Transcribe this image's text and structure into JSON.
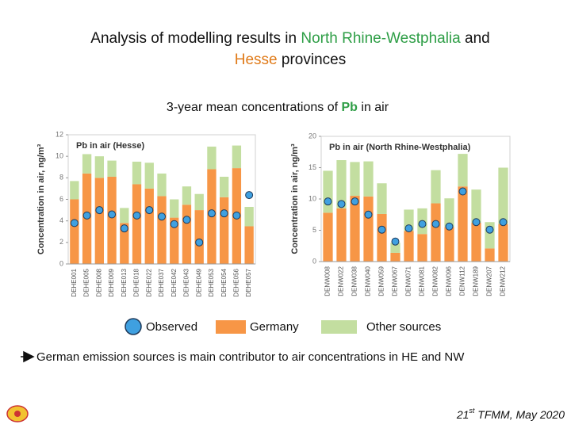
{
  "title_parts": [
    "Analysis of modelling results in ",
    "North Rhine-Westphalia",
    " and ",
    "Hesse",
    " provinces"
  ],
  "subtitle_parts": [
    "3-year mean concentrations of ",
    "Pb",
    " in air"
  ],
  "bullet": "German emission sources is main contributor to air concentrations in HE and NW",
  "footer_parts": [
    "21",
    "st",
    " TFMM, May 2020"
  ],
  "chart_data": [
    {
      "type": "bar",
      "stacked": true,
      "title": "Pb in air (Hesse)",
      "ylabel": "Concentration in air, ng/m³",
      "categories": [
        "DEHE001",
        "DEHE005",
        "DEHE008",
        "DEHE009",
        "DEHE013",
        "DEHE018",
        "DEHE022",
        "DEHE037",
        "DEHE042",
        "DEHE043",
        "DEHE049",
        "DEHE053",
        "DEHE054",
        "DEHE056",
        "DEHE057"
      ],
      "series": [
        {
          "name": "Germany",
          "color": "#f79646",
          "values": [
            6.0,
            8.4,
            8.0,
            8.1,
            3.8,
            7.4,
            7.0,
            6.3,
            4.3,
            5.5,
            5.0,
            8.8,
            6.2,
            8.9,
            3.5
          ]
        },
        {
          "name": "Other sources",
          "color": "#c3dea0",
          "values": [
            1.7,
            1.8,
            2.0,
            1.5,
            1.4,
            2.1,
            2.4,
            2.1,
            1.7,
            1.7,
            1.5,
            2.1,
            1.9,
            2.1,
            1.8
          ]
        },
        {
          "name": "Observed",
          "type": "scatter",
          "color": "#3fa0e0",
          "values": [
            3.8,
            4.5,
            5.0,
            4.6,
            3.3,
            4.5,
            5.0,
            4.4,
            3.7,
            4.1,
            2.0,
            4.7,
            4.7,
            4.5,
            6.4
          ]
        }
      ],
      "ylim": [
        0,
        12
      ],
      "yticks": [
        0,
        2,
        4,
        6,
        8,
        10,
        12
      ],
      "grid": false
    },
    {
      "type": "bar",
      "stacked": true,
      "title": "Pb in air (North Rhine-Westphalia)",
      "ylabel": "Concentration in air, ng/m³",
      "categories": [
        "DENW008",
        "DENW022",
        "DENW038",
        "DENW040",
        "DENW059",
        "DENW067",
        "DENW071",
        "DENW081",
        "DENW082",
        "DENW096",
        "DENW112",
        "DENW189",
        "DENW207",
        "DENW212"
      ],
      "series": [
        {
          "color": "#f79646",
          "values": [
            7.8,
            8.5,
            10.5,
            10.4,
            7.6,
            1.4,
            4.9,
            4.4,
            9.3,
            5.5,
            12.0,
            6.2,
            2.1,
            6.0
          ]
        },
        {
          "color": "#c3dea0",
          "values": [
            6.7,
            7.7,
            5.4,
            5.6,
            4.9,
            1.6,
            3.4,
            4.1,
            5.3,
            4.6,
            5.2,
            5.3,
            4.2,
            9.0
          ]
        },
        {
          "type": "scatter",
          "color": "#3fa0e0",
          "values": [
            9.6,
            9.2,
            9.6,
            7.5,
            5.1,
            3.2,
            5.3,
            6.0,
            6.0,
            5.6,
            11.2,
            6.3,
            5.1,
            6.3
          ]
        }
      ],
      "ylim": [
        0,
        20
      ],
      "yticks": [
        0,
        5,
        10,
        15,
        20
      ],
      "grid": false
    }
  ]
}
